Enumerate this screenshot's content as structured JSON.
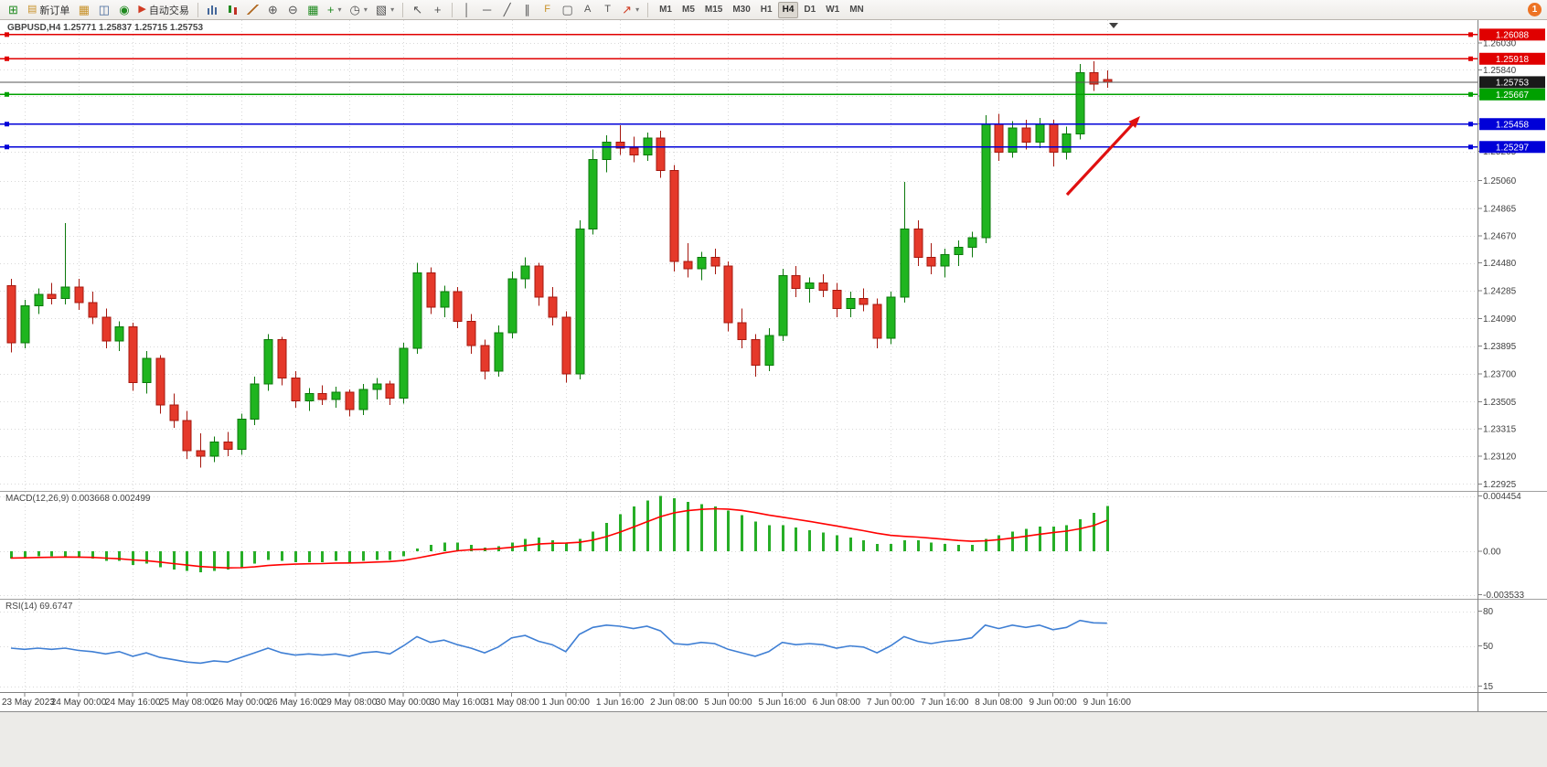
{
  "toolbar": {
    "new_order_label": "新订单",
    "auto_trading_label": "自动交易",
    "timeframes": [
      "M1",
      "M5",
      "M15",
      "M30",
      "H1",
      "H4",
      "D1",
      "W1",
      "MN"
    ],
    "active_timeframe": "H4",
    "badge_count": "1"
  },
  "chart": {
    "symbol_header": "GBPUSD,H4 1.25771 1.25837 1.25715 1.25753",
    "macd_label": "MACD(12,26,9) 0.003668 0.002499",
    "rsi_label": "RSI(14) 69.6747",
    "hlines": [
      {
        "label": "1.26088",
        "price": 1.26088,
        "color": "#e00000"
      },
      {
        "label": "1.25918",
        "price": 1.25918,
        "color": "#e00000"
      },
      {
        "label": "1.25753",
        "price": 1.25753,
        "color": "#555555",
        "box": "#1a1a1a",
        "current": true
      },
      {
        "label": "1.25667",
        "price": 1.25667,
        "color": "#00a000"
      },
      {
        "label": "1.25458",
        "price": 1.25458,
        "color": "#0000d8"
      },
      {
        "label": "1.25297",
        "price": 1.25297,
        "color": "#0000d8"
      }
    ],
    "arrow": {
      "from": [
        1167,
        191
      ],
      "to": [
        1247,
        105
      ]
    }
  },
  "colors": {
    "candle_up": "#1fb51f",
    "candle_up_stroke": "#0b780b",
    "candle_down": "#e5392a",
    "candle_down_stroke": "#a5170e",
    "macd_bar": "#27ae27",
    "macd_signal": "#ff0000",
    "rsi_line": "#3f7fd4",
    "grid": "#d9d9d9",
    "axis_text": "#3f3f3f",
    "time_text": "#3a3a3a",
    "separator": "#a0a0a0",
    "arrow": "#e01010"
  },
  "chart_data": {
    "type": "candlestick",
    "symbol": "GBPUSD",
    "period": "H4",
    "price_range": [
      1.22876,
      1.2619
    ],
    "price_ticks": [
      "1.26030",
      "1.25840",
      "1.25655",
      "1.25460",
      "1.25265",
      "1.25060",
      "1.24865",
      "1.24670",
      "1.24480",
      "1.24285",
      "1.24090",
      "1.23895",
      "1.23700",
      "1.23505",
      "1.23315",
      "1.23120",
      "1.22925"
    ],
    "x_labels": [
      "23 May 2023",
      "24 May 00:00",
      "24 May 16:00",
      "25 May 08:00",
      "26 May 00:00",
      "26 May 16:00",
      "29 May 08:00",
      "30 May 00:00",
      "30 May 16:00",
      "31 May 08:00",
      "1 Jun 00:00",
      "1 Jun 16:00",
      "2 Jun 08:00",
      "5 Jun 00:00",
      "5 Jun 16:00",
      "6 Jun 08:00",
      "7 Jun 00:00",
      "7 Jun 16:00",
      "8 Jun 08:00",
      "9 Jun 00:00",
      "9 Jun 16:00"
    ],
    "label_start": 1,
    "label_step": 4,
    "ohlc": [
      [
        1.2432,
        1.2437,
        1.2385,
        1.2392
      ],
      [
        1.2392,
        1.2422,
        1.2388,
        1.2418
      ],
      [
        1.2418,
        1.243,
        1.2412,
        1.2426
      ],
      [
        1.2426,
        1.2434,
        1.2419,
        1.2423
      ],
      [
        1.2423,
        1.2476,
        1.2419,
        1.2431
      ],
      [
        1.2431,
        1.2437,
        1.2415,
        1.242
      ],
      [
        1.242,
        1.2428,
        1.2405,
        1.241
      ],
      [
        1.241,
        1.2416,
        1.2388,
        1.2393
      ],
      [
        1.2393,
        1.2407,
        1.2386,
        1.2403
      ],
      [
        1.2403,
        1.2406,
        1.2358,
        1.2364
      ],
      [
        1.2364,
        1.2386,
        1.2356,
        1.2381
      ],
      [
        1.2381,
        1.2383,
        1.2342,
        1.2348
      ],
      [
        1.2348,
        1.2356,
        1.2332,
        1.2337
      ],
      [
        1.2337,
        1.2344,
        1.231,
        1.2316
      ],
      [
        1.2316,
        1.2328,
        1.2304,
        1.2312
      ],
      [
        1.2312,
        1.2326,
        1.2308,
        1.2322
      ],
      [
        1.2322,
        1.2329,
        1.2312,
        1.2317
      ],
      [
        1.2317,
        1.2342,
        1.2313,
        1.2338
      ],
      [
        1.2338,
        1.2368,
        1.2334,
        1.2363
      ],
      [
        1.2363,
        1.2398,
        1.2358,
        1.2394
      ],
      [
        1.2394,
        1.2396,
        1.2362,
        1.2367
      ],
      [
        1.2367,
        1.2372,
        1.2346,
        1.2351
      ],
      [
        1.2351,
        1.236,
        1.2344,
        1.2356
      ],
      [
        1.2356,
        1.2362,
        1.2348,
        1.2352
      ],
      [
        1.2352,
        1.2361,
        1.2346,
        1.2357
      ],
      [
        1.2357,
        1.2359,
        1.234,
        1.2345
      ],
      [
        1.2345,
        1.2363,
        1.2341,
        1.2359
      ],
      [
        1.2359,
        1.2367,
        1.2352,
        1.2363
      ],
      [
        1.2363,
        1.2365,
        1.2348,
        1.2353
      ],
      [
        1.2353,
        1.2392,
        1.2349,
        1.2388
      ],
      [
        1.2388,
        1.2448,
        1.2384,
        1.2441
      ],
      [
        1.2441,
        1.2445,
        1.2412,
        1.2417
      ],
      [
        1.2417,
        1.2432,
        1.241,
        1.2428
      ],
      [
        1.2428,
        1.2431,
        1.2402,
        1.2407
      ],
      [
        1.2407,
        1.2412,
        1.2384,
        1.239
      ],
      [
        1.239,
        1.2394,
        1.2366,
        1.2372
      ],
      [
        1.2372,
        1.2404,
        1.2368,
        1.2399
      ],
      [
        1.2399,
        1.2442,
        1.2395,
        1.2437
      ],
      [
        1.2437,
        1.2452,
        1.243,
        1.2446
      ],
      [
        1.2446,
        1.2448,
        1.2418,
        1.2424
      ],
      [
        1.2424,
        1.2431,
        1.2404,
        1.241
      ],
      [
        1.241,
        1.2414,
        1.2364,
        1.237
      ],
      [
        1.237,
        1.2478,
        1.2366,
        1.2472
      ],
      [
        1.2472,
        1.2528,
        1.2468,
        1.2521
      ],
      [
        1.2521,
        1.2538,
        1.2512,
        1.2533
      ],
      [
        1.2533,
        1.2545,
        1.2524,
        1.2529
      ],
      [
        1.2529,
        1.2537,
        1.2519,
        1.2524
      ],
      [
        1.2524,
        1.254,
        1.252,
        1.2536
      ],
      [
        1.2536,
        1.2541,
        1.2508,
        1.2513
      ],
      [
        1.2513,
        1.2517,
        1.2442,
        1.2449
      ],
      [
        1.2449,
        1.2462,
        1.2438,
        1.2444
      ],
      [
        1.2444,
        1.2456,
        1.2436,
        1.2452
      ],
      [
        1.2452,
        1.2458,
        1.244,
        1.2446
      ],
      [
        1.2446,
        1.2449,
        1.24,
        1.2406
      ],
      [
        1.2406,
        1.2416,
        1.2388,
        1.2394
      ],
      [
        1.2394,
        1.2398,
        1.2368,
        1.2376
      ],
      [
        1.2376,
        1.2402,
        1.2372,
        1.2397
      ],
      [
        1.2397,
        1.2444,
        1.2393,
        1.2439
      ],
      [
        1.2439,
        1.2446,
        1.2424,
        1.243
      ],
      [
        1.243,
        1.2438,
        1.242,
        1.2434
      ],
      [
        1.2434,
        1.244,
        1.2424,
        1.2429
      ],
      [
        1.2429,
        1.2434,
        1.241,
        1.2416
      ],
      [
        1.2416,
        1.2428,
        1.241,
        1.2423
      ],
      [
        1.2423,
        1.243,
        1.2414,
        1.2419
      ],
      [
        1.2419,
        1.2423,
        1.2388,
        1.2395
      ],
      [
        1.2395,
        1.2428,
        1.2391,
        1.2424
      ],
      [
        1.2424,
        1.2505,
        1.242,
        1.2472
      ],
      [
        1.2472,
        1.2478,
        1.2446,
        1.2452
      ],
      [
        1.2452,
        1.2462,
        1.244,
        1.2446
      ],
      [
        1.2446,
        1.2458,
        1.2438,
        1.2454
      ],
      [
        1.2454,
        1.2464,
        1.2446,
        1.2459
      ],
      [
        1.2459,
        1.247,
        1.2452,
        1.2466
      ],
      [
        1.2466,
        1.2552,
        1.2462,
        1.2546
      ],
      [
        1.2546,
        1.2553,
        1.252,
        1.2526
      ],
      [
        1.2526,
        1.2548,
        1.2522,
        1.2543
      ],
      [
        1.2543,
        1.2549,
        1.2528,
        1.2533
      ],
      [
        1.2533,
        1.255,
        1.2529,
        1.2546
      ],
      [
        1.2546,
        1.2549,
        1.2516,
        1.2526
      ],
      [
        1.2526,
        1.2544,
        1.2521,
        1.2539
      ],
      [
        1.2539,
        1.2588,
        1.2535,
        1.2582
      ],
      [
        1.2582,
        1.259,
        1.2569,
        1.2574
      ],
      [
        1.25771,
        1.25837,
        1.25715,
        1.25753
      ]
    ],
    "macd": {
      "ticks": [
        "0.004454",
        "0.00",
        "-0.003533"
      ],
      "range": [
        -0.00385,
        0.0048
      ],
      "histogram": [
        -0.0006,
        -0.0005,
        -0.0004,
        -0.0004,
        -0.0004,
        -0.0005,
        -0.0006,
        -0.0008,
        -0.0008,
        -0.0011,
        -0.001,
        -0.0013,
        -0.0015,
        -0.0016,
        -0.0017,
        -0.0016,
        -0.0015,
        -0.0013,
        -0.001,
        -0.0007,
        -0.0008,
        -0.0009,
        -0.0009,
        -0.0009,
        -0.0008,
        -0.0009,
        -0.0008,
        -0.0007,
        -0.0007,
        -0.0004,
        0.0002,
        0.0005,
        0.0007,
        0.0007,
        0.0005,
        0.0003,
        0.0004,
        0.0007,
        0.001,
        0.0011,
        0.0009,
        0.0007,
        0.001,
        0.0016,
        0.0023,
        0.003,
        0.0036,
        0.0041,
        0.00445,
        0.0043,
        0.004,
        0.0038,
        0.0036,
        0.0033,
        0.0029,
        0.0024,
        0.0021,
        0.0021,
        0.0019,
        0.0017,
        0.0015,
        0.0013,
        0.0011,
        0.0009,
        0.0006,
        0.0006,
        0.0009,
        0.0009,
        0.0007,
        0.0006,
        0.0005,
        0.0005,
        0.001,
        0.0013,
        0.0016,
        0.0018,
        0.002,
        0.002,
        0.0021,
        0.0026,
        0.0031,
        0.003668
      ],
      "signal": [
        -0.00055,
        -0.00054,
        -0.00051,
        -0.00049,
        -0.00047,
        -0.00048,
        -0.0005,
        -0.00056,
        -0.00061,
        -0.00071,
        -0.00077,
        -0.00088,
        -0.001,
        -0.00112,
        -0.00124,
        -0.00131,
        -0.00135,
        -0.00134,
        -0.00127,
        -0.00116,
        -0.00109,
        -0.00105,
        -0.00102,
        -0.001,
        -0.00096,
        -0.00095,
        -0.00092,
        -0.00088,
        -0.00084,
        -0.00075,
        -0.00056,
        -0.00035,
        -0.00014,
        3e-05,
        0.00012,
        0.00016,
        0.00021,
        0.00031,
        0.00045,
        0.00058,
        0.00064,
        0.00065,
        0.00072,
        0.0009,
        0.00118,
        0.00154,
        0.00195,
        0.00238,
        0.0028,
        0.0031,
        0.00328,
        0.00338,
        0.00343,
        0.0034,
        0.0033,
        0.00312,
        0.00292,
        0.00275,
        0.00258,
        0.00241,
        0.00223,
        0.00204,
        0.00185,
        0.00166,
        0.00145,
        0.00128,
        0.0012,
        0.00114,
        0.00105,
        0.00096,
        0.00087,
        0.0008,
        0.00084,
        0.00093,
        0.00106,
        0.00121,
        0.00137,
        0.0015,
        0.00162,
        0.00181,
        0.00207,
        0.002499
      ]
    },
    "rsi": {
      "levels": [
        "80",
        "50",
        "15"
      ],
      "range": [
        10,
        90
      ],
      "values": [
        48,
        47,
        48,
        47,
        48,
        46,
        45,
        43,
        45,
        41,
        44,
        40,
        38,
        36,
        35,
        37,
        36,
        40,
        44,
        48,
        44,
        42,
        43,
        42,
        43,
        41,
        44,
        45,
        43,
        50,
        58,
        53,
        55,
        51,
        48,
        44,
        49,
        57,
        59,
        54,
        51,
        45,
        60,
        66,
        68,
        67,
        65,
        67,
        63,
        52,
        51,
        53,
        52,
        47,
        44,
        41,
        45,
        53,
        51,
        52,
        51,
        48,
        50,
        49,
        44,
        50,
        58,
        54,
        52,
        54,
        55,
        57,
        68,
        65,
        68,
        66,
        68,
        64,
        66,
        72,
        70,
        69.6747
      ]
    }
  }
}
